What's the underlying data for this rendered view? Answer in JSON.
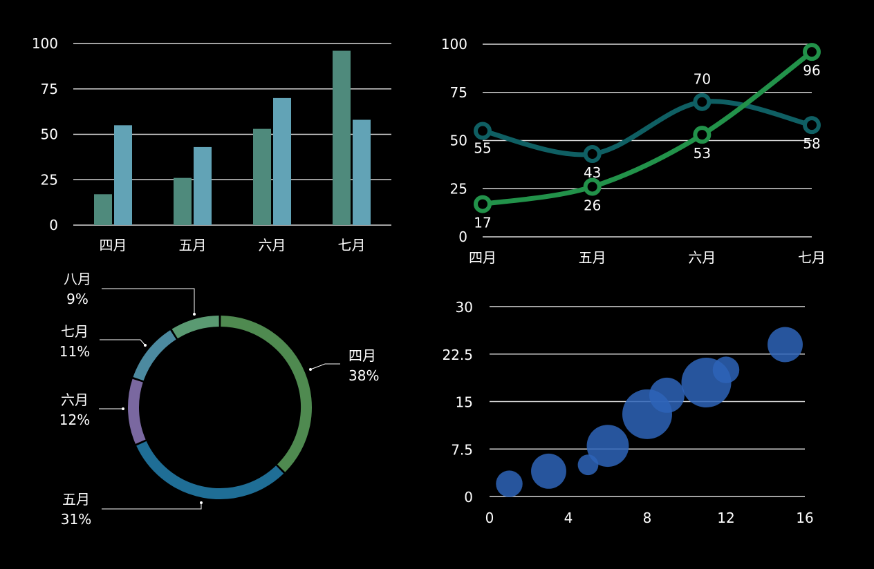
{
  "colors": {
    "background": "#000000",
    "grid": "#d9d9d9",
    "bar_series_1": "#4f8a7c",
    "bar_series_2": "#62a3b6",
    "line_series_1": "#0f5f63",
    "line_series_2": "#22924a",
    "bubble": "#2e64b8"
  },
  "chart_data": [
    {
      "type": "bar",
      "categories": [
        "四月",
        "五月",
        "六月",
        "七月"
      ],
      "series": [
        {
          "values": [
            17,
            26,
            53,
            96
          ]
        },
        {
          "values": [
            55,
            43,
            70,
            58
          ]
        }
      ],
      "yticks": [
        "0",
        "25",
        "50",
        "75",
        "100"
      ],
      "ylim": [
        0,
        100
      ],
      "grid": true
    },
    {
      "type": "line",
      "categories": [
        "四月",
        "五月",
        "六月",
        "七月"
      ],
      "series": [
        {
          "values": [
            55,
            43,
            70,
            58
          ],
          "labels": [
            "55",
            "43",
            "70",
            "58"
          ]
        },
        {
          "values": [
            17,
            26,
            53,
            96
          ],
          "labels": [
            "17",
            "26",
            "53",
            "96"
          ]
        }
      ],
      "yticks": [
        "0",
        "25",
        "50",
        "75",
        "100"
      ],
      "ylim": [
        0,
        100
      ],
      "smooth": true,
      "grid": true
    },
    {
      "type": "pie",
      "style": "donut",
      "slices": [
        {
          "category": "四月",
          "percent": 38,
          "label": "38%",
          "color": "#4f8a50"
        },
        {
          "category": "五月",
          "percent": 31,
          "label": "31%",
          "color": "#1f6e96"
        },
        {
          "category": "六月",
          "percent": 12,
          "label": "12%",
          "color": "#7a68a0"
        },
        {
          "category": "七月",
          "percent": 11,
          "label": "11%",
          "color": "#4c8aa0"
        },
        {
          "category": "八月",
          "percent": 9,
          "label": "9%",
          "color": "#5a9a72"
        }
      ]
    },
    {
      "type": "scatter",
      "style": "bubble",
      "points": [
        {
          "x": 1,
          "y": 2,
          "size": 2
        },
        {
          "x": 3,
          "y": 4,
          "size": 3.5
        },
        {
          "x": 5,
          "y": 5,
          "size": 1.2
        },
        {
          "x": 6,
          "y": 8,
          "size": 5
        },
        {
          "x": 8,
          "y": 13,
          "size": 7
        },
        {
          "x": 9,
          "y": 16,
          "size": 3.5
        },
        {
          "x": 11,
          "y": 18,
          "size": 7
        },
        {
          "x": 12,
          "y": 20,
          "size": 2
        },
        {
          "x": 15,
          "y": 24,
          "size": 3.5
        }
      ],
      "xticks": [
        "0",
        "4",
        "8",
        "12",
        "16"
      ],
      "yticks": [
        "0",
        "7.5",
        "15",
        "22.5",
        "30"
      ],
      "xlim": [
        0,
        16
      ],
      "ylim": [
        0,
        30
      ],
      "grid": true
    }
  ]
}
